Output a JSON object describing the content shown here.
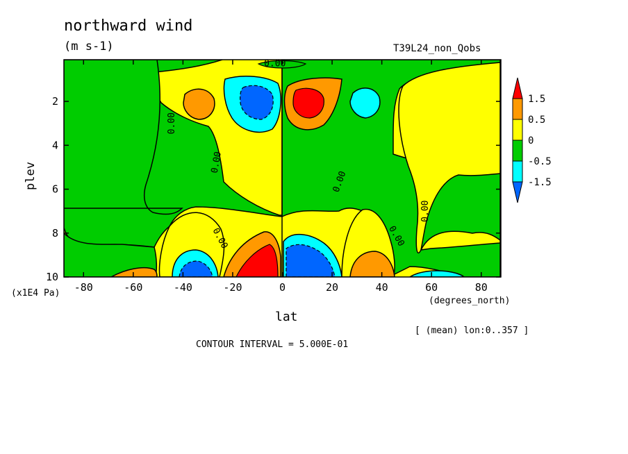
{
  "chart_data": {
    "type": "heatmap",
    "title": "northward wind",
    "units": "(m s-1)",
    "run_label": "T39L24_non_Qobs",
    "xlabel": "lat",
    "x_units": "(degrees_north)",
    "ylabel": "plev",
    "y_units": "(x1E4 Pa)",
    "averaging_note": "[ (mean) lon:0..357 ]",
    "contour_interval": "CONTOUR INTERVAL = 5.000E-01",
    "contour_label": "0.00",
    "xlim": [
      -87.9,
      87.9
    ],
    "ylim": [
      10,
      0.1
    ],
    "x_ticks": [
      "-80",
      "-60",
      "-40",
      "-20",
      "0",
      "20",
      "40",
      "60",
      "80"
    ],
    "y_ticks": [
      "2",
      "4",
      "6",
      "8",
      "10"
    ],
    "colorbar": {
      "levels": [
        "1.5",
        "0.5",
        "0",
        "-0.5",
        "-1.5"
      ],
      "colors": [
        "#ff0000",
        "#ff9900",
        "#ffff00",
        "#00cc00",
        "#00ffff",
        "#0066ff"
      ]
    },
    "features": [
      {
        "lat": -8,
        "plev": 9.6,
        "value": 2.0
      },
      {
        "lat": 9,
        "plev": 9.6,
        "value": -2.0
      },
      {
        "lat": -10,
        "plev": 2.0,
        "value": -1.6
      },
      {
        "lat": 9,
        "plev": 2.0,
        "value": 1.6
      },
      {
        "lat": -35,
        "plev": 9.4,
        "value": -0.8
      },
      {
        "lat": 35,
        "plev": 9.6,
        "value": 0.8
      },
      {
        "lat": -56,
        "plev": 9.9,
        "value": 0.6
      },
      {
        "lat": 60,
        "plev": 9.9,
        "value": -0.6
      },
      {
        "lat": -33,
        "plev": 2.3,
        "value": 0.6
      },
      {
        "lat": 33,
        "plev": 2.0,
        "value": -0.6
      }
    ]
  }
}
